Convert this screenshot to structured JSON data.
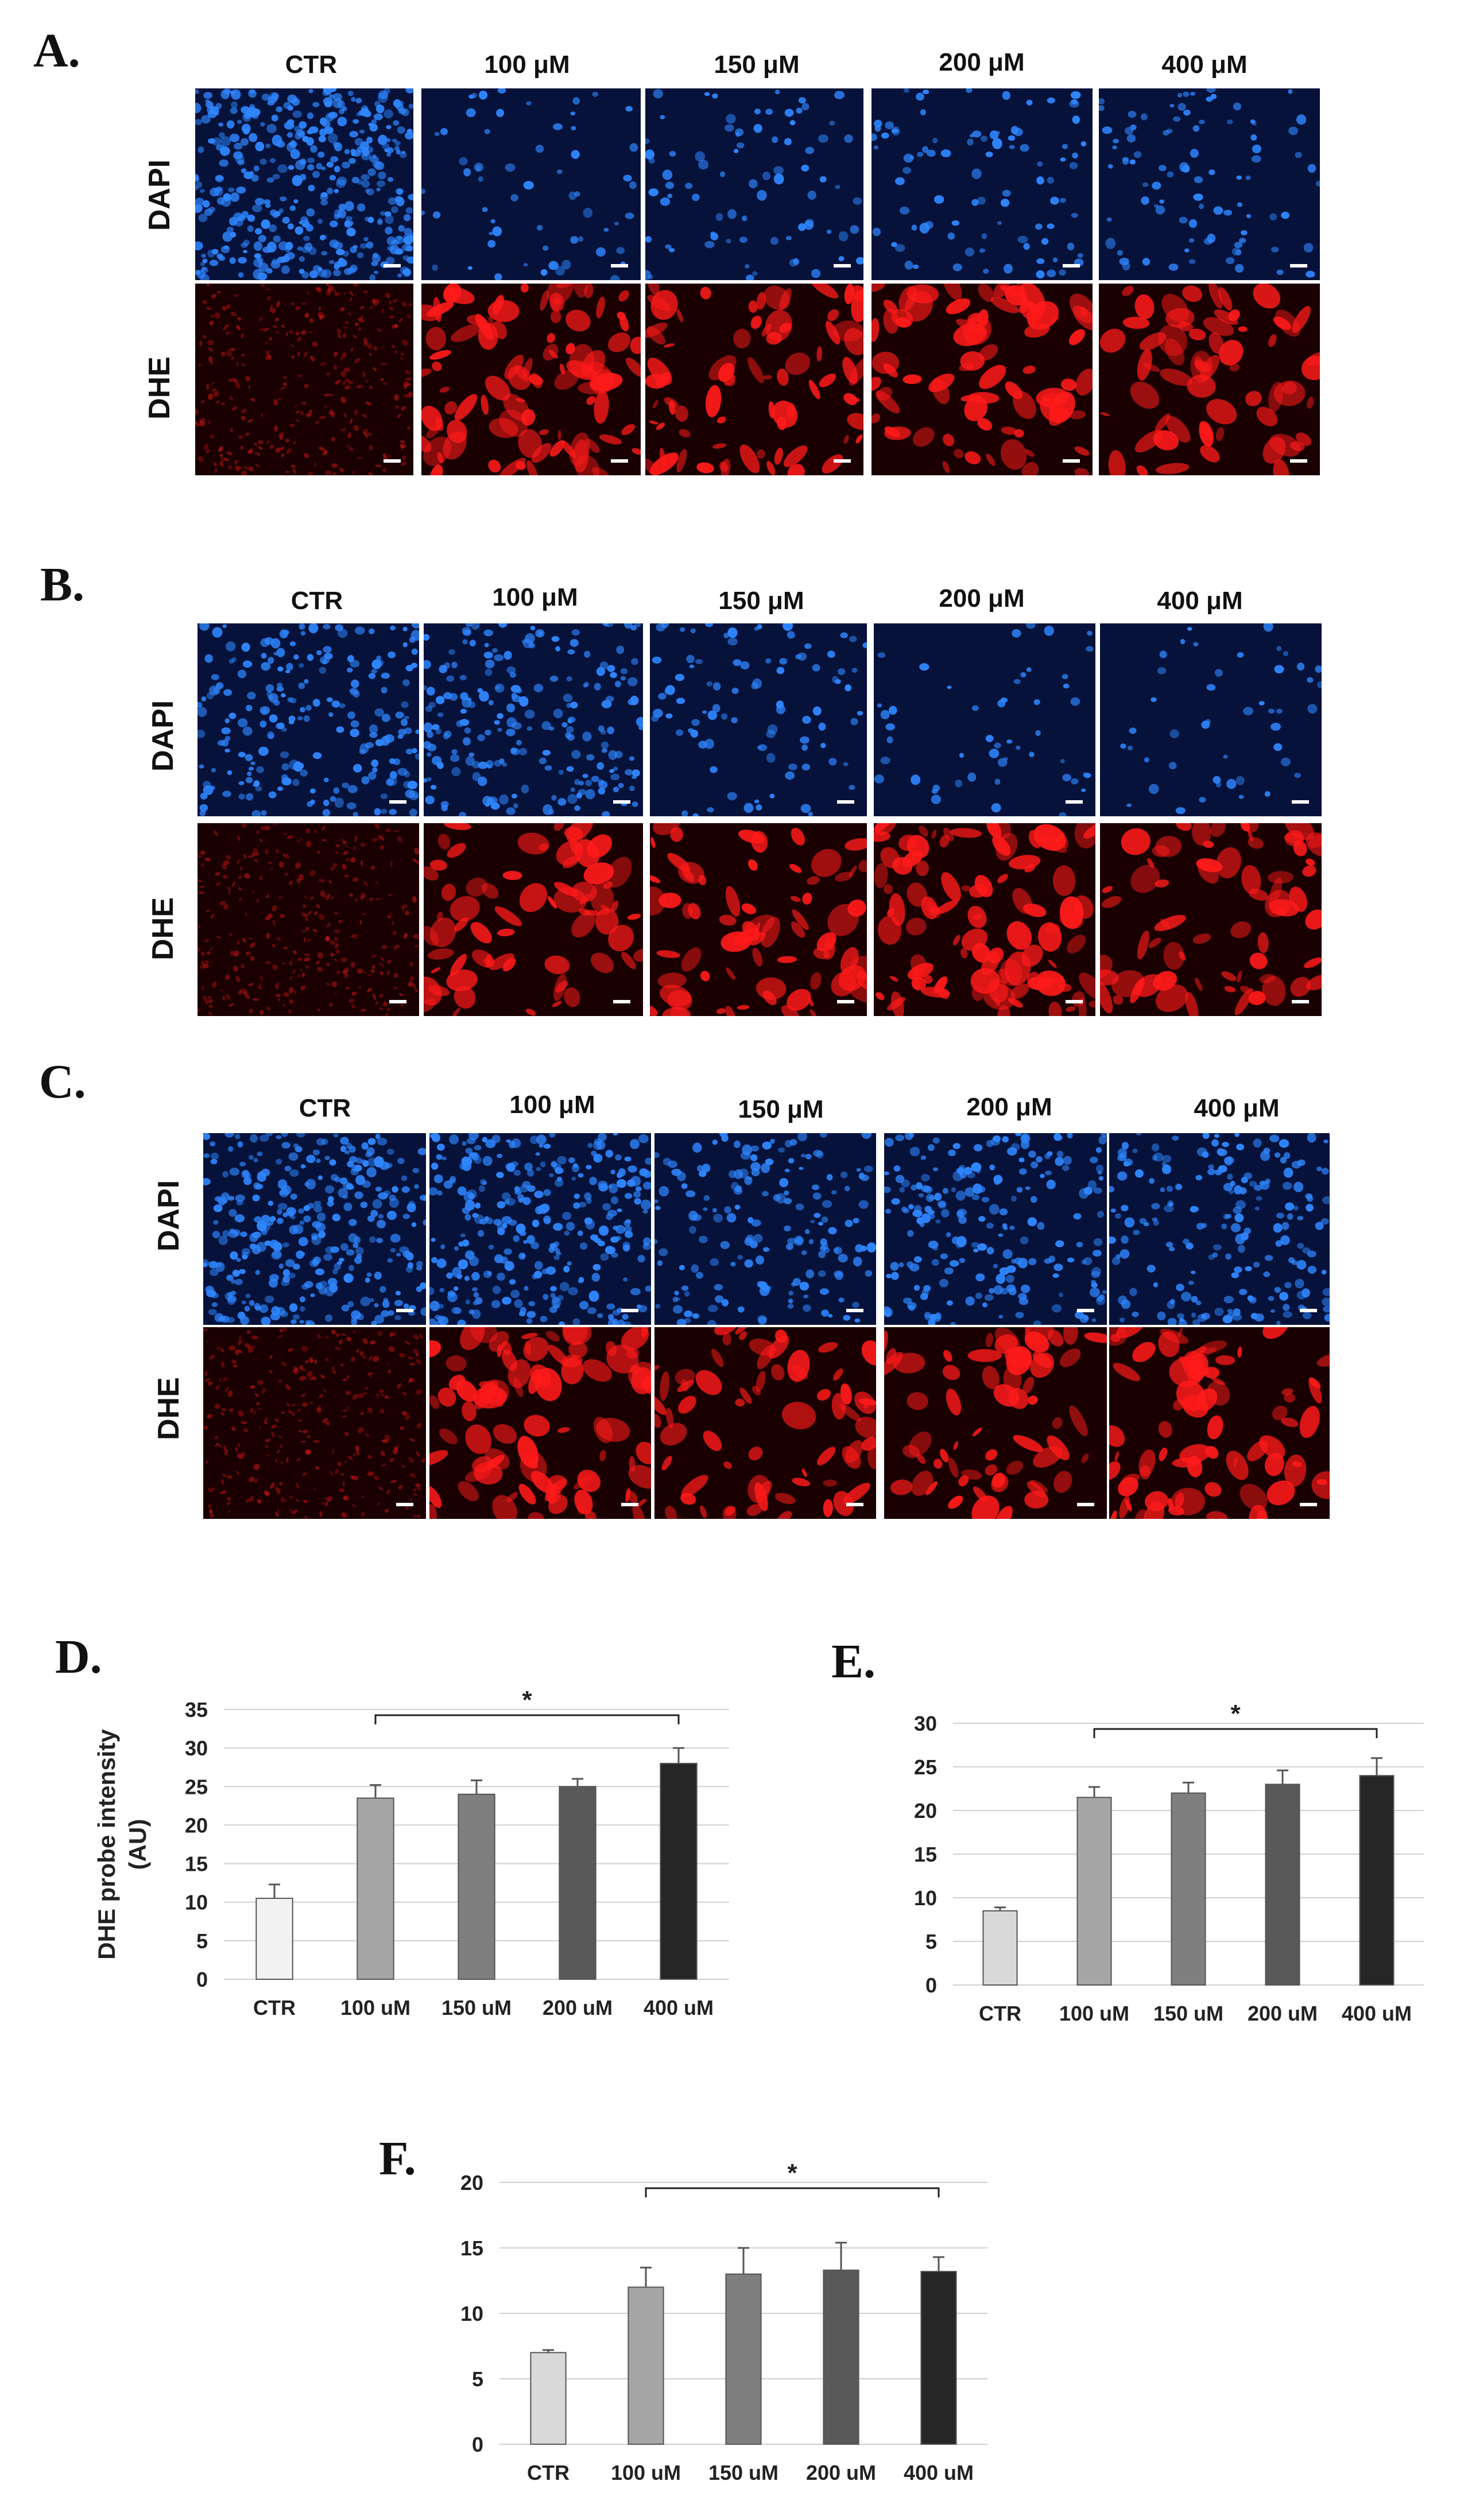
{
  "panels": [
    {
      "letter": "A.",
      "columns": [
        "CTR",
        "100 μM",
        "150 μM",
        "200 μM",
        "400 μM"
      ],
      "rows": [
        "DAPI",
        "DHE"
      ]
    },
    {
      "letter": "B.",
      "columns": [
        "CTR",
        "100 μM",
        "150 μM",
        "200 μM",
        "400 μM"
      ],
      "rows": [
        "DAPI",
        "DHE"
      ]
    },
    {
      "letter": "C.",
      "columns": [
        "CTR",
        "100 μM",
        "150 μM",
        "200 μM",
        "400 μM"
      ],
      "rows": [
        "DAPI",
        "DHE"
      ]
    }
  ],
  "colors": {
    "dapi_bg": "#06123a",
    "dapi_cell": "#2f86ff",
    "dhe_bg": "#1a0000",
    "dhe_cell": "#ff1a1a"
  },
  "chart_data": [
    {
      "letter": "D.",
      "type": "bar",
      "categories": [
        "CTR",
        "100 uM",
        "150 uM",
        "200 uM",
        "400 uM"
      ],
      "values": [
        10.5,
        23.5,
        24,
        25,
        28
      ],
      "errors": [
        1.8,
        1.7,
        1.8,
        1,
        2
      ],
      "ylabel": "DHE probe intensity (AU)",
      "ylim": [
        0,
        35
      ],
      "yticks": [
        0,
        5,
        10,
        15,
        20,
        25,
        30,
        35
      ],
      "significance": "*",
      "colors": [
        "#f2f2f2",
        "#a6a6a6",
        "#7f7f7f",
        "#595959",
        "#262626"
      ]
    },
    {
      "letter": "E.",
      "type": "bar",
      "categories": [
        "CTR",
        "100 uM",
        "150 uM",
        "200 uM",
        "400 uM"
      ],
      "values": [
        8.5,
        21.5,
        22,
        23,
        24
      ],
      "errors": [
        0.4,
        1.2,
        1.2,
        1.6,
        2
      ],
      "ylabel": "",
      "ylim": [
        0,
        30
      ],
      "yticks": [
        0,
        5,
        10,
        15,
        20,
        25,
        30
      ],
      "significance": "*",
      "colors": [
        "#d9d9d9",
        "#a6a6a6",
        "#7f7f7f",
        "#595959",
        "#262626"
      ]
    },
    {
      "letter": "F.",
      "type": "bar",
      "categories": [
        "CTR",
        "100 uM",
        "150 uM",
        "200 uM",
        "400 uM"
      ],
      "values": [
        7,
        12,
        13,
        13.3,
        13.2
      ],
      "errors": [
        0.2,
        1.5,
        2,
        2.1,
        1.1
      ],
      "ylabel": "",
      "ylim": [
        0,
        20
      ],
      "yticks": [
        0,
        5,
        10,
        15,
        20
      ],
      "significance": "*",
      "colors": [
        "#d9d9d9",
        "#a6a6a6",
        "#7f7f7f",
        "#595959",
        "#262626"
      ]
    }
  ]
}
